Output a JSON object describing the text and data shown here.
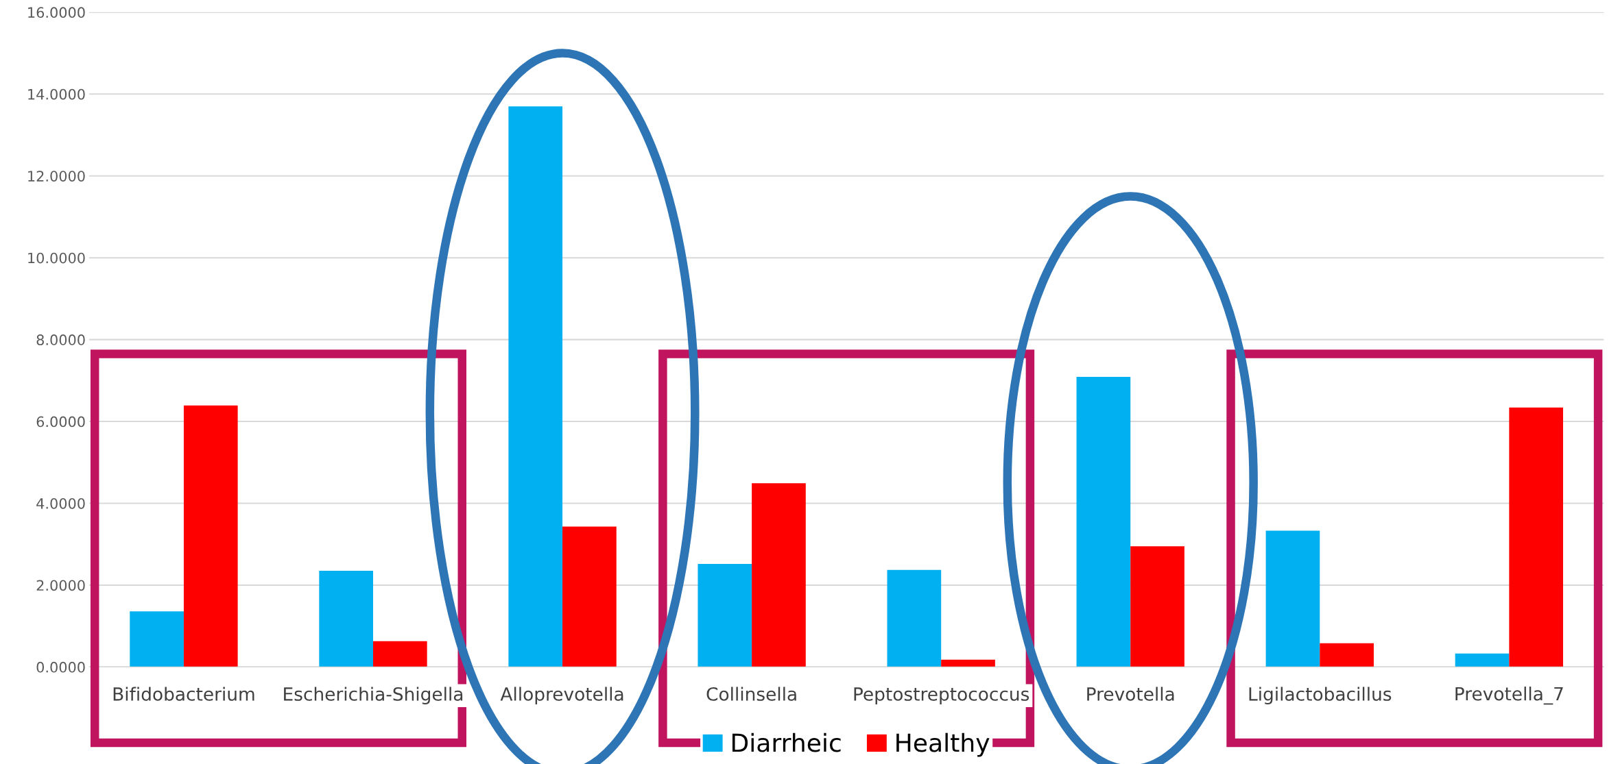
{
  "chart_data": {
    "type": "bar",
    "categories": [
      "Bifidobacterium",
      "Escherichia-Shigella",
      "Alloprevotella",
      "Collinsella",
      "Peptostreptococcus",
      "Prevotella",
      "Ligilactobacillus",
      "Prevotella_7"
    ],
    "series": [
      {
        "name": "Diarrheic",
        "color": "#00b0f0",
        "values": [
          1.36,
          2.35,
          13.7,
          2.52,
          2.37,
          7.09,
          3.33,
          0.33
        ]
      },
      {
        "name": "Healthy",
        "color": "#ff0000",
        "values": [
          6.39,
          0.63,
          3.43,
          4.49,
          0.18,
          2.95,
          0.58,
          6.34
        ]
      }
    ],
    "ylim": [
      0,
      16
    ],
    "yticks": [
      {
        "value": 0,
        "label": "0.0000"
      },
      {
        "value": 2,
        "label": "2.0000"
      },
      {
        "value": 4,
        "label": "4.0000"
      },
      {
        "value": 6,
        "label": "6.0000"
      },
      {
        "value": 8,
        "label": "8.0000"
      },
      {
        "value": 10,
        "label": "10.0000"
      },
      {
        "value": 12,
        "label": "12.0000"
      },
      {
        "value": 14,
        "label": "14.0000"
      },
      {
        "value": 16,
        "label": "16.0000"
      }
    ],
    "grid": "y",
    "legend": "bottom"
  }
}
